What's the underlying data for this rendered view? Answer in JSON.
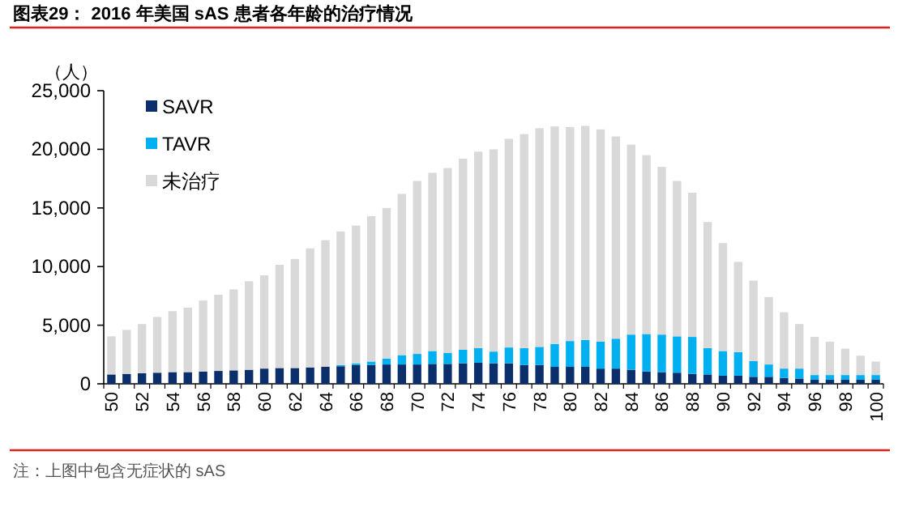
{
  "chart_data": {
    "type": "bar",
    "title": "图表29：  2016 年美国 sAS 患者各年龄的治疗情况",
    "ylabel": "（人）",
    "categories": [
      "50",
      null,
      "52",
      null,
      "54",
      null,
      "56",
      null,
      "58",
      null,
      "60",
      null,
      "62",
      null,
      "64",
      null,
      "66",
      null,
      "68",
      null,
      "70",
      null,
      "72",
      null,
      "74",
      null,
      "76",
      null,
      "78",
      null,
      "80",
      null,
      "82",
      null,
      "84",
      null,
      "86",
      null,
      "88",
      null,
      "90",
      null,
      "92",
      null,
      "94",
      null,
      "96",
      null,
      "98",
      null,
      "100"
    ],
    "stacked": true,
    "legend": "top left",
    "ylim": [
      0,
      25000
    ],
    "yticks": [
      0,
      {
        "value": 5000,
        "label": "5,000"
      },
      {
        "value": 10000,
        "label": "10,000"
      },
      {
        "value": 15000,
        "label": "15,000"
      },
      {
        "value": 20000,
        "label": "20,000"
      },
      {
        "value": 25000,
        "label": "25,000"
      }
    ],
    "series": [
      {
        "name": "SAVR",
        "color": "#0b2f6b",
        "values": [
          800,
          850,
          900,
          950,
          1000,
          1000,
          1050,
          1100,
          1150,
          1200,
          1300,
          1350,
          1350,
          1400,
          1450,
          1500,
          1600,
          1600,
          1650,
          1650,
          1650,
          1700,
          1700,
          1750,
          1800,
          1750,
          1750,
          1600,
          1600,
          1450,
          1450,
          1450,
          1300,
          1300,
          1200,
          1050,
          1000,
          950,
          850,
          800,
          700,
          700,
          600,
          600,
          500,
          450,
          350,
          350,
          350,
          350,
          350
        ]
      },
      {
        "name": "TAVR",
        "color": "#00b0f0",
        "values": [
          0,
          0,
          0,
          0,
          0,
          0,
          0,
          0,
          0,
          0,
          0,
          0,
          0,
          0,
          0,
          100,
          150,
          300,
          500,
          800,
          900,
          1100,
          950,
          1150,
          1250,
          1000,
          1350,
          1450,
          1550,
          1950,
          2200,
          2300,
          2300,
          2550,
          3000,
          3200,
          3200,
          3100,
          3150,
          2250,
          2100,
          2000,
          1350,
          1050,
          800,
          850,
          400,
          400,
          400,
          400,
          400
        ]
      },
      {
        "name": "未治疗",
        "color": "#d9d9d9",
        "values": [
          3250,
          3750,
          4200,
          4750,
          5200,
          5500,
          6050,
          6500,
          6900,
          7550,
          7950,
          8800,
          9300,
          10150,
          10800,
          11400,
          11750,
          12400,
          12850,
          13750,
          14750,
          15200,
          15750,
          16300,
          16750,
          17250,
          17800,
          18250,
          18650,
          18550,
          18250,
          18250,
          18100,
          17250,
          16200,
          15250,
          14300,
          13250,
          12300,
          10750,
          9200,
          7700,
          6850,
          5750,
          4800,
          3800,
          3250,
          2850,
          2250,
          1650,
          1150
        ]
      }
    ],
    "annotations": [
      "注：上图中包含无症状的 sAS"
    ]
  }
}
